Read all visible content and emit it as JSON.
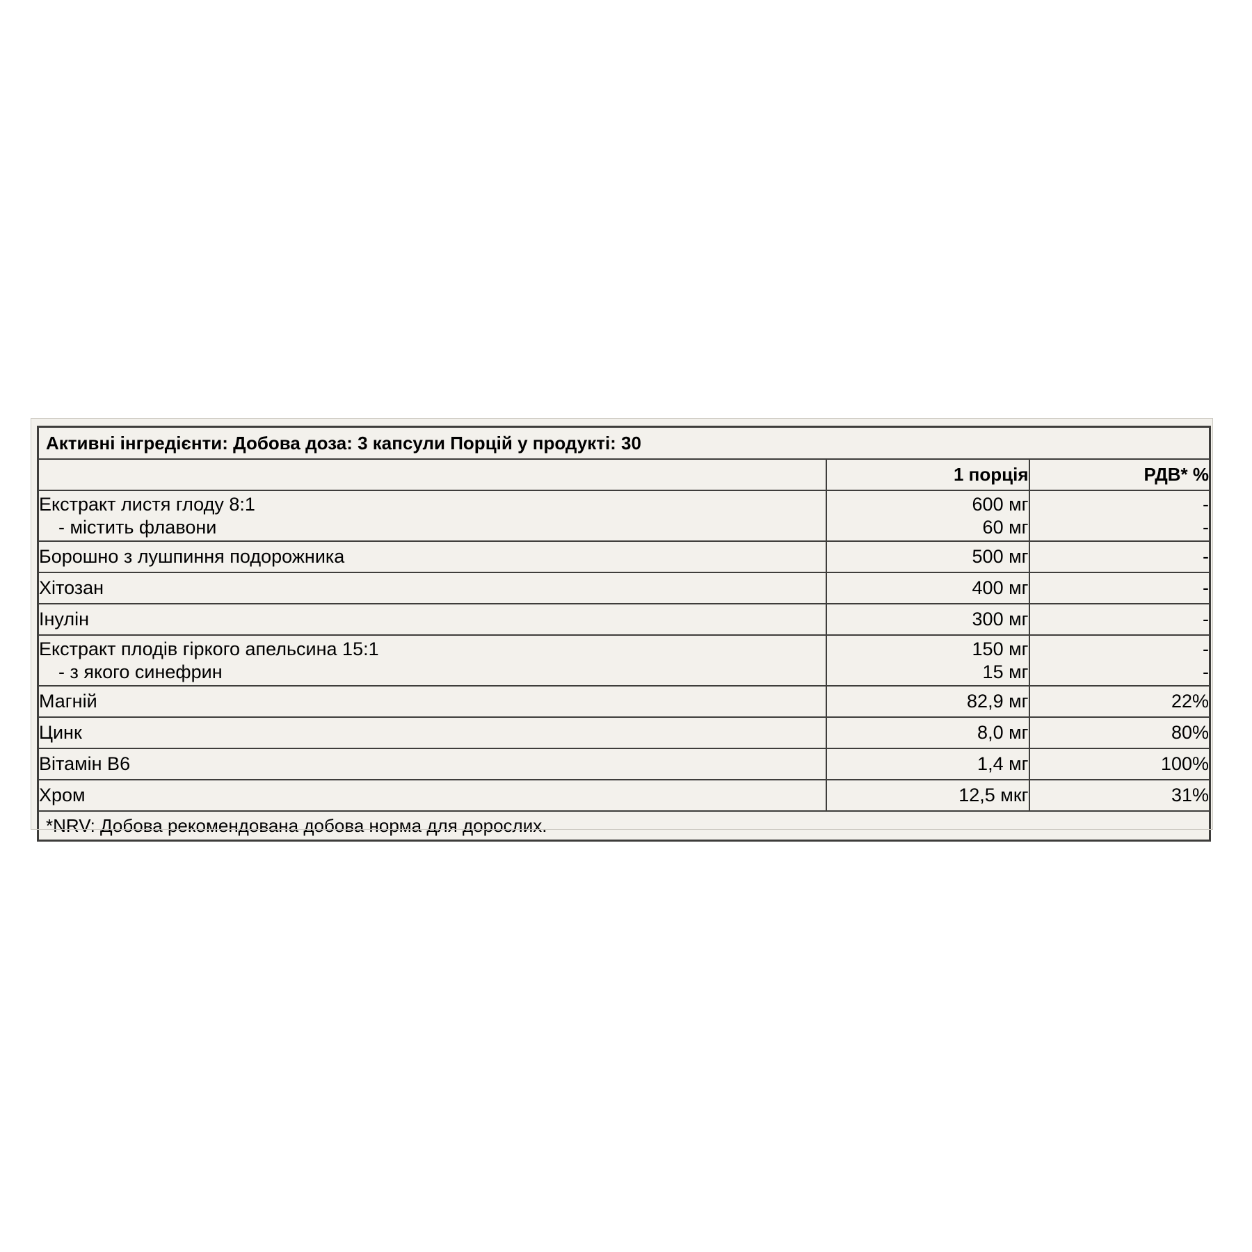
{
  "page": {
    "background": "#ffffff"
  },
  "panel": {
    "background": "#f3f1ec",
    "border_color": "#3e3d3b"
  },
  "table": {
    "title": "Активні інгредієнти: Добова доза: 3 капсули Порцій у продукті: 30",
    "columns": {
      "ingredient": "",
      "per_serving": "1 порція",
      "nrv": "РДВ* %"
    },
    "rows": [
      {
        "name": "Екстракт листя глоду 8:1",
        "sub_name": "- містить флавони",
        "amount": "600 мг",
        "sub_amount": "60 мг",
        "nrv": "-",
        "sub_nrv": "-"
      },
      {
        "name": "Борошно з лушпиння подорожника",
        "amount": "500 мг",
        "nrv": "-"
      },
      {
        "name": "Хітозан",
        "amount": "400 мг",
        "nrv": "-"
      },
      {
        "name": "Інулін",
        "amount": "300 мг",
        "nrv": "-"
      },
      {
        "name": "Екстракт плодів гіркого апельсина 15:1",
        "sub_name": "- з якого синефрин",
        "amount": "150 мг",
        "sub_amount": "15 мг",
        "nrv": "-",
        "sub_nrv": "-"
      },
      {
        "name": "Магній",
        "amount": "82,9 мг",
        "nrv": "22%"
      },
      {
        "name": "Цинк",
        "amount": "8,0 мг",
        "nrv": "80%"
      },
      {
        "name": "Вітамін B6",
        "amount": "1,4 мг",
        "nrv": "100%"
      },
      {
        "name": "Хром",
        "amount": "12,5 мкг",
        "nrv": "31%"
      }
    ],
    "footnote": "*NRV: Добова рекомендована добова норма для дорослих."
  }
}
